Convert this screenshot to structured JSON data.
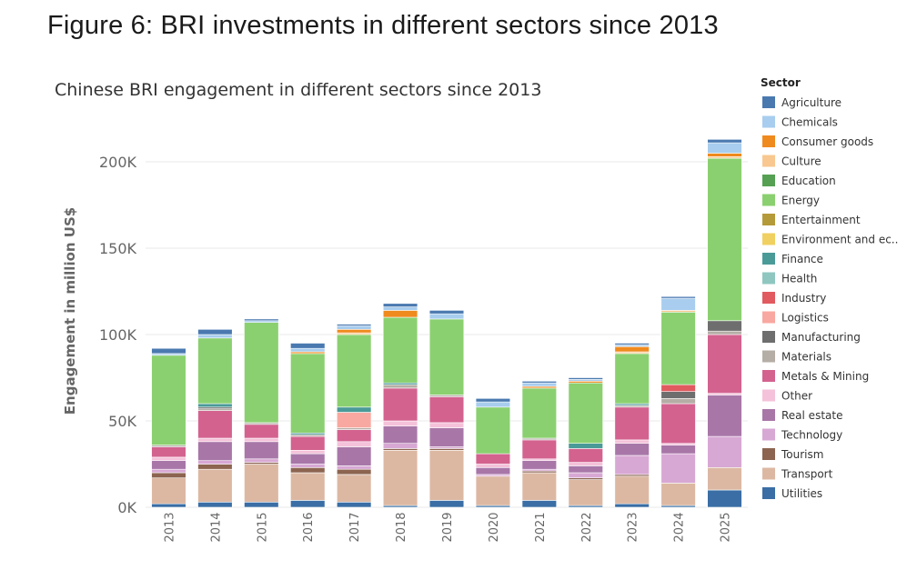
{
  "figure_caption": "Figure 6: BRI investments in different sectors since 2013",
  "chart_data": {
    "type": "bar",
    "stacked": true,
    "title": "Chinese BRI engagement in different sectors since 2013",
    "xlabel": "",
    "ylabel": "Engagement in million US$",
    "ylim": [
      0,
      220000
    ],
    "yticks": [
      0,
      50000,
      100000,
      150000,
      200000
    ],
    "ytick_labels": [
      "0K",
      "50K",
      "100K",
      "150K",
      "200K"
    ],
    "grid": true,
    "legend_title": "Sector",
    "legend_position": "right",
    "categories": [
      "2013",
      "2014",
      "2015",
      "2016",
      "2017",
      "2018",
      "2019",
      "2020",
      "2021",
      "2022",
      "2023",
      "2024",
      "2025"
    ],
    "series": [
      {
        "name": "Utilities",
        "color": "#3a6ea5",
        "values": [
          2000,
          3000,
          3000,
          4000,
          3000,
          1000,
          4000,
          1000,
          4000,
          1000,
          2000,
          1000,
          10000
        ]
      },
      {
        "name": "Transport",
        "color": "#dcb8a3",
        "values": [
          15000,
          19000,
          22000,
          16000,
          16000,
          32000,
          29000,
          17000,
          16000,
          15000,
          16000,
          13000,
          13000
        ]
      },
      {
        "name": "Tourism",
        "color": "#8c6450",
        "values": [
          3000,
          3000,
          1000,
          3000,
          3000,
          1000,
          1000,
          0,
          1000,
          1000,
          1000,
          0,
          0
        ]
      },
      {
        "name": "Technology",
        "color": "#d8a8d4",
        "values": [
          2000,
          2000,
          2000,
          2000,
          2000,
          3000,
          1000,
          1000,
          1000,
          3000,
          11000,
          17000,
          18000
        ]
      },
      {
        "name": "Real estate",
        "color": "#a877a8",
        "values": [
          5000,
          11000,
          10000,
          6000,
          11000,
          10000,
          11000,
          4000,
          5000,
          4000,
          7000,
          5000,
          24000
        ]
      },
      {
        "name": "Other",
        "color": "#f4c2da",
        "values": [
          2000,
          2000,
          2000,
          2000,
          3000,
          3000,
          3000,
          2000,
          1000,
          2000,
          2000,
          1000,
          1000
        ]
      },
      {
        "name": "Metals & Mining",
        "color": "#d3628f",
        "values": [
          6000,
          16000,
          8000,
          8000,
          7000,
          19000,
          15000,
          6000,
          11000,
          8000,
          19000,
          23000,
          34000
        ]
      },
      {
        "name": "Materials",
        "color": "#b5aea6",
        "values": [
          1000,
          1000,
          1000,
          1000,
          1000,
          2000,
          1000,
          0,
          1000,
          0,
          1000,
          3000,
          2000
        ]
      },
      {
        "name": "Manufacturing",
        "color": "#6e6e6e",
        "values": [
          0,
          1000,
          0,
          0,
          0,
          0,
          0,
          0,
          0,
          0,
          0,
          4000,
          6000
        ]
      },
      {
        "name": "Logistics",
        "color": "#f8a8a0",
        "values": [
          0,
          0,
          0,
          0,
          9000,
          0,
          0,
          0,
          0,
          0,
          0,
          0,
          0
        ]
      },
      {
        "name": "Industry",
        "color": "#e05a5f",
        "values": [
          0,
          0,
          0,
          0,
          0,
          0,
          0,
          0,
          0,
          0,
          0,
          4000,
          0
        ]
      },
      {
        "name": "Health",
        "color": "#8fc7c0",
        "values": [
          0,
          0,
          0,
          0,
          0,
          0,
          0,
          0,
          0,
          0,
          0,
          0,
          0
        ]
      },
      {
        "name": "Finance",
        "color": "#4a9a98",
        "values": [
          0,
          2000,
          0,
          1000,
          3000,
          1000,
          0,
          0,
          0,
          3000,
          1000,
          0,
          0
        ]
      },
      {
        "name": "Environment and ec..",
        "color": "#f0d060",
        "values": [
          0,
          0,
          0,
          0,
          0,
          0,
          0,
          0,
          0,
          0,
          0,
          0,
          0
        ]
      },
      {
        "name": "Entertainment",
        "color": "#b59a3a",
        "values": [
          0,
          0,
          0,
          0,
          0,
          0,
          0,
          0,
          0,
          0,
          0,
          0,
          0
        ]
      },
      {
        "name": "Energy",
        "color": "#8bd070",
        "values": [
          52000,
          38000,
          58000,
          46000,
          42000,
          38000,
          44000,
          27000,
          29000,
          35000,
          29000,
          42000,
          94000
        ]
      },
      {
        "name": "Education",
        "color": "#55a052",
        "values": [
          0,
          0,
          0,
          0,
          0,
          0,
          0,
          0,
          0,
          0,
          0,
          0,
          0
        ]
      },
      {
        "name": "Culture",
        "color": "#f8c890",
        "values": [
          0,
          0,
          0,
          0,
          1000,
          0,
          0,
          0,
          0,
          0,
          1000,
          1000,
          1000
        ]
      },
      {
        "name": "Consumer goods",
        "color": "#ef8a1e",
        "values": [
          0,
          0,
          0,
          1000,
          2000,
          4000,
          0,
          0,
          1000,
          1000,
          3000,
          0,
          2000
        ]
      },
      {
        "name": "Chemicals",
        "color": "#a8cdee",
        "values": [
          1000,
          2000,
          1000,
          2000,
          2000,
          2000,
          3000,
          3000,
          2000,
          1000,
          1000,
          7000,
          6000
        ]
      },
      {
        "name": "Agriculture",
        "color": "#4a79b0",
        "values": [
          3000,
          3000,
          1000,
          3000,
          1000,
          2000,
          2000,
          2000,
          1000,
          1000,
          1000,
          1000,
          2000
        ]
      }
    ],
    "legend_order": [
      "Agriculture",
      "Chemicals",
      "Consumer goods",
      "Culture",
      "Education",
      "Energy",
      "Entertainment",
      "Environment and ec..",
      "Finance",
      "Health",
      "Industry",
      "Logistics",
      "Manufacturing",
      "Materials",
      "Metals & Mining",
      "Other",
      "Real estate",
      "Technology",
      "Tourism",
      "Transport",
      "Utilities"
    ]
  }
}
